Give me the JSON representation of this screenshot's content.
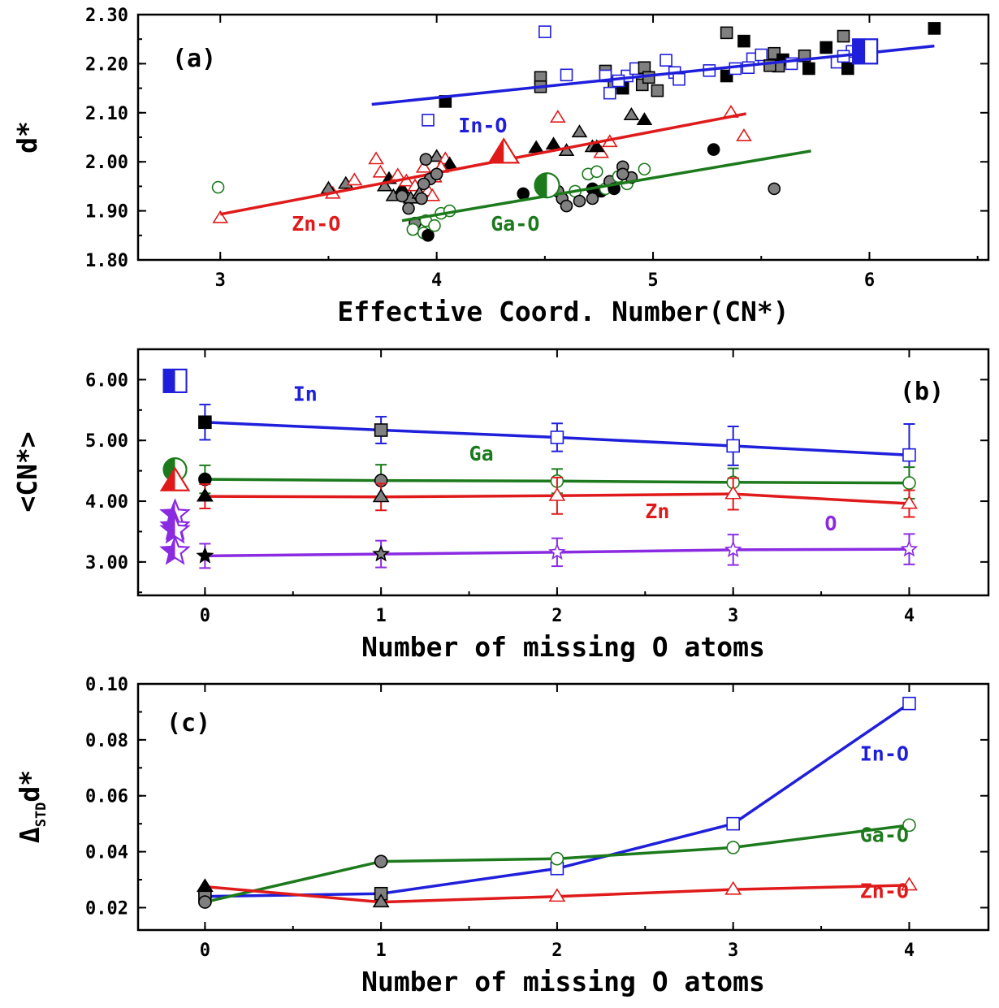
{
  "chart_data": [
    {
      "id": "a",
      "type": "scatter",
      "panel_label": "(a)",
      "xlabel": "Effective Coord. Number(CN*)",
      "ylabel": "d*",
      "xlim": [
        2.62,
        6.55
      ],
      "ylim": [
        1.8,
        2.3
      ],
      "xticks": [
        3,
        4,
        5,
        6
      ],
      "xtick_labels": [
        "3",
        "4",
        "5",
        "6"
      ],
      "yticks": [
        1.8,
        1.9,
        2.0,
        2.1,
        2.2,
        2.3
      ],
      "ytick_labels": [
        "1.80",
        "1.90",
        "2.00",
        "2.10",
        "2.20",
        "2.30"
      ],
      "annotations": [
        {
          "text": "In-O",
          "x": 4.1,
          "y": 2.06,
          "color": "#1f1fdb"
        },
        {
          "text": "Zn-O",
          "x": 3.33,
          "y": 1.86,
          "color": "#e01a1a"
        },
        {
          "text": "Ga-O",
          "x": 4.25,
          "y": 1.86,
          "color": "#1c7a1c"
        }
      ],
      "series": [
        {
          "name": "In-O",
          "color": "#1f1fdb",
          "marker": "square",
          "fit": {
            "x": [
              3.7,
              6.3
            ],
            "y": [
              2.117,
              2.236
            ]
          },
          "points": [
            [
              4.04,
              2.123,
              "black"
            ],
            [
              4.48,
              2.172,
              "gray"
            ],
            [
              4.48,
              2.153,
              "gray"
            ],
            [
              4.6,
              2.177,
              "open"
            ],
            [
              4.5,
              2.265,
              "open"
            ],
            [
              3.96,
              2.085,
              "open"
            ],
            [
              4.78,
              2.185,
              "gray"
            ],
            [
              4.82,
              2.16,
              "gray"
            ],
            [
              4.86,
              2.15,
              "black"
            ],
            [
              4.88,
              2.175,
              "open"
            ],
            [
              4.92,
              2.19,
              "open"
            ],
            [
              4.96,
              2.192,
              "gray"
            ],
            [
              4.95,
              2.157,
              "gray"
            ],
            [
              4.8,
              2.14,
              "open"
            ],
            [
              4.84,
              2.165,
              "open"
            ],
            [
              4.78,
              2.175,
              "open"
            ],
            [
              5.06,
              2.207,
              "open"
            ],
            [
              5.1,
              2.182,
              "open"
            ],
            [
              5.12,
              2.168,
              "open"
            ],
            [
              4.98,
              2.172,
              "gray"
            ],
            [
              5.02,
              2.145,
              "gray"
            ],
            [
              5.34,
              2.263,
              "gray"
            ],
            [
              5.42,
              2.246,
              "black"
            ],
            [
              5.34,
              2.175,
              "black"
            ],
            [
              5.38,
              2.19,
              "open"
            ],
            [
              5.46,
              2.21,
              "open"
            ],
            [
              5.5,
              2.218,
              "open"
            ],
            [
              5.56,
              2.221,
              "gray"
            ],
            [
              5.6,
              2.208,
              "black"
            ],
            [
              5.58,
              2.195,
              "gray"
            ],
            [
              5.64,
              2.2,
              "open"
            ],
            [
              5.7,
              2.216,
              "gray"
            ],
            [
              5.72,
              2.19,
              "black"
            ],
            [
              5.8,
              2.233,
              "black"
            ],
            [
              5.85,
              2.203,
              "open"
            ],
            [
              5.88,
              2.256,
              "gray"
            ],
            [
              5.9,
              2.19,
              "black"
            ],
            [
              5.92,
              2.225,
              "open"
            ],
            [
              5.88,
              2.215,
              "open"
            ],
            [
              6.3,
              2.272,
              "black"
            ],
            [
              5.54,
              2.196,
              "gray"
            ],
            [
              5.44,
              2.192,
              "open"
            ],
            [
              5.26,
              2.186,
              "open"
            ]
          ],
          "big_marker": {
            "x": 5.98,
            "y": 2.225,
            "style": "half"
          }
        },
        {
          "name": "Zn-O",
          "color": "#e01a1a",
          "marker": "triangle",
          "fit": {
            "x": [
              3.0,
              5.43
            ],
            "y": [
              1.893,
              2.098
            ]
          },
          "points": [
            [
              3.0,
              1.885,
              "open"
            ],
            [
              3.52,
              1.935,
              "open"
            ],
            [
              3.5,
              1.945,
              "gray"
            ],
            [
              3.58,
              1.955,
              "gray"
            ],
            [
              3.62,
              1.962,
              "open"
            ],
            [
              3.72,
              2.005,
              "open"
            ],
            [
              3.74,
              1.978,
              "open"
            ],
            [
              3.76,
              1.95,
              "gray"
            ],
            [
              3.78,
              1.965,
              "black"
            ],
            [
              3.8,
              1.93,
              "gray"
            ],
            [
              3.82,
              1.972,
              "open"
            ],
            [
              3.84,
              1.945,
              "black"
            ],
            [
              3.86,
              1.96,
              "open"
            ],
            [
              3.88,
              1.925,
              "gray"
            ],
            [
              3.9,
              1.95,
              "open"
            ],
            [
              3.92,
              1.935,
              "gray"
            ],
            [
              3.94,
              1.988,
              "open"
            ],
            [
              3.96,
              1.94,
              "open"
            ],
            [
              3.98,
              1.93,
              "open"
            ],
            [
              4.0,
              2.01,
              "gray"
            ],
            [
              4.04,
              2.005,
              "open"
            ],
            [
              4.06,
              1.995,
              "black"
            ],
            [
              4.02,
              1.988,
              "open"
            ],
            [
              3.99,
              1.968,
              "open"
            ],
            [
              4.56,
              2.09,
              "open"
            ],
            [
              4.66,
              2.06,
              "gray"
            ],
            [
              4.6,
              2.022,
              "gray"
            ],
            [
              4.54,
              2.035,
              "black"
            ],
            [
              4.46,
              2.028,
              "black"
            ],
            [
              4.72,
              2.03,
              "gray"
            ],
            [
              4.76,
              2.018,
              "open"
            ],
            [
              4.8,
              2.04,
              "open"
            ],
            [
              4.74,
              2.03,
              "black"
            ],
            [
              4.9,
              2.095,
              "gray"
            ],
            [
              4.96,
              2.085,
              "black"
            ],
            [
              5.36,
              2.1,
              "open"
            ],
            [
              5.42,
              2.052,
              "open"
            ]
          ],
          "big_marker": {
            "x": 4.31,
            "y": 2.017,
            "style": "half"
          }
        },
        {
          "name": "Ga-O",
          "color": "#1c7a1c",
          "marker": "circle",
          "fit": {
            "x": [
              3.84,
              5.73
            ],
            "y": [
              1.88,
              2.022
            ]
          },
          "points": [
            [
              2.99,
              1.948,
              "open"
            ],
            [
              3.84,
              1.93,
              "gray"
            ],
            [
              3.87,
              1.905,
              "gray"
            ],
            [
              3.9,
              1.875,
              "gray"
            ],
            [
              3.89,
              1.862,
              "open"
            ],
            [
              3.94,
              1.855,
              "open"
            ],
            [
              3.95,
              1.88,
              "open"
            ],
            [
              3.96,
              1.85,
              "black"
            ],
            [
              3.99,
              1.87,
              "open"
            ],
            [
              4.02,
              1.895,
              "open"
            ],
            [
              3.93,
              1.925,
              "gray"
            ],
            [
              3.95,
              2.005,
              "gray"
            ],
            [
              3.97,
              1.965,
              "gray"
            ],
            [
              4.0,
              1.975,
              "gray"
            ],
            [
              3.94,
              1.955,
              "gray"
            ],
            [
              4.06,
              1.9,
              "open"
            ],
            [
              4.4,
              1.935,
              "black"
            ],
            [
              4.52,
              1.958,
              "gray"
            ],
            [
              4.56,
              1.94,
              "gray"
            ],
            [
              4.58,
              1.925,
              "gray"
            ],
            [
              4.6,
              1.91,
              "gray"
            ],
            [
              4.64,
              1.94,
              "open"
            ],
            [
              4.66,
              1.92,
              "gray"
            ],
            [
              4.7,
              1.975,
              "open"
            ],
            [
              4.72,
              1.945,
              "black"
            ],
            [
              4.74,
              1.98,
              "open"
            ],
            [
              4.76,
              1.94,
              "black"
            ],
            [
              4.78,
              1.945,
              "open"
            ],
            [
              4.8,
              1.96,
              "gray"
            ],
            [
              4.82,
              1.945,
              "black"
            ],
            [
              4.84,
              1.97,
              "open"
            ],
            [
              4.86,
              1.99,
              "gray"
            ],
            [
              4.88,
              1.955,
              "open"
            ],
            [
              4.9,
              1.968,
              "gray"
            ],
            [
              4.96,
              1.985,
              "open"
            ],
            [
              5.28,
              2.025,
              "black"
            ],
            [
              5.56,
              1.945,
              "gray"
            ],
            [
              4.72,
              1.925,
              "gray"
            ],
            [
              4.86,
              1.975,
              "gray"
            ]
          ],
          "big_marker": {
            "x": 4.51,
            "y": 1.952,
            "style": "half"
          }
        }
      ]
    },
    {
      "id": "b",
      "type": "line",
      "panel_label": "(b)",
      "xlabel": "Number of missing O atoms",
      "ylabel": "<CN*>",
      "xlim": [
        -0.38,
        4.45
      ],
      "ylim": [
        2.45,
        6.5
      ],
      "xticks": [
        0,
        1,
        2,
        3,
        4
      ],
      "xtick_labels": [
        "0",
        "1",
        "2",
        "3",
        "4"
      ],
      "yticks": [
        3,
        4,
        5,
        6
      ],
      "ytick_labels": [
        "3.00",
        "4.00",
        "5.00",
        "6.00"
      ],
      "x": [
        0,
        1,
        2,
        3,
        4
      ],
      "annotations": [
        {
          "text": "In",
          "x": 0.5,
          "y": 5.65,
          "color": "#1f1fdb"
        },
        {
          "text": "Ga",
          "x": 1.5,
          "y": 4.67,
          "color": "#1c7a1c"
        },
        {
          "text": "Zn",
          "x": 2.5,
          "y": 3.72,
          "color": "#e01a1a"
        },
        {
          "text": "O",
          "x": 3.52,
          "y": 3.52,
          "color": "#8a2be2"
        }
      ],
      "series": [
        {
          "name": "In",
          "color": "#1f1fdb",
          "marker": "square",
          "values": [
            5.3,
            5.17,
            5.05,
            4.91,
            4.76
          ],
          "err": [
            0.29,
            0.22,
            0.23,
            0.32,
            0.51
          ],
          "fills": [
            "black",
            "gray",
            "open",
            "open",
            "open"
          ],
          "ref": [
            {
              "x": -0.17,
              "y": 5.98,
              "style": "half"
            }
          ]
        },
        {
          "name": "Ga",
          "color": "#1c7a1c",
          "marker": "circle",
          "values": [
            4.36,
            4.34,
            4.33,
            4.31,
            4.3
          ],
          "err": [
            0.23,
            0.26,
            0.2,
            0.23,
            0.26
          ],
          "fills": [
            "black",
            "gray",
            "open",
            "open",
            "open"
          ],
          "ref": [
            {
              "x": -0.17,
              "y": 4.52,
              "style": "half"
            }
          ]
        },
        {
          "name": "Zn",
          "color": "#e01a1a",
          "marker": "triangle",
          "values": [
            4.08,
            4.07,
            4.09,
            4.12,
            3.96
          ],
          "err": [
            0.2,
            0.22,
            0.3,
            0.26,
            0.22
          ],
          "fills": [
            "black",
            "gray",
            "open",
            "open",
            "open"
          ],
          "ref": [
            {
              "x": -0.17,
              "y": 4.32,
              "style": "half"
            }
          ]
        },
        {
          "name": "O",
          "color": "#8a2be2",
          "marker": "star",
          "values": [
            3.1,
            3.13,
            3.16,
            3.2,
            3.21
          ],
          "err": [
            0.2,
            0.22,
            0.23,
            0.25,
            0.25
          ],
          "fills": [
            "black",
            "gray",
            "open",
            "open",
            "open"
          ],
          "ref": [
            {
              "x": -0.17,
              "y": 3.78,
              "style": "half"
            },
            {
              "x": -0.17,
              "y": 3.58,
              "style": "half"
            },
            {
              "x": -0.17,
              "y": 3.52,
              "style": "half"
            },
            {
              "x": -0.17,
              "y": 3.17,
              "style": "half"
            }
          ]
        }
      ]
    },
    {
      "id": "c",
      "type": "line",
      "panel_label": "(c)",
      "xlabel": "Number of missing O atoms",
      "ylabel": "Δ",
      "ylabel_sub": "STD",
      "ylabel_tail": "d*",
      "xlim": [
        -0.38,
        4.45
      ],
      "ylim": [
        0.012,
        0.1
      ],
      "xticks": [
        0,
        1,
        2,
        3,
        4
      ],
      "xtick_labels": [
        "0",
        "1",
        "2",
        "3",
        "4"
      ],
      "yticks": [
        0.02,
        0.04,
        0.06,
        0.08,
        0.1
      ],
      "ytick_labels": [
        "0.02",
        "0.04",
        "0.06",
        "0.08",
        "0.10"
      ],
      "x": [
        0,
        1,
        2,
        3,
        4
      ],
      "annotations": [
        {
          "text": "In-O",
          "x": 3.72,
          "y": 0.0725,
          "color": "#1f1fdb"
        },
        {
          "text": "Ga-O",
          "x": 3.72,
          "y": 0.0435,
          "color": "#1c7a1c"
        },
        {
          "text": "Zn-O",
          "x": 3.72,
          "y": 0.0235,
          "color": "#e01a1a"
        }
      ],
      "series": [
        {
          "name": "In-O",
          "color": "#1f1fdb",
          "marker": "square",
          "values": [
            0.024,
            0.025,
            0.034,
            0.05,
            0.093
          ],
          "fills": [
            "gray",
            "gray",
            "open",
            "open",
            "open"
          ]
        },
        {
          "name": "Ga-O",
          "color": "#1c7a1c",
          "marker": "circle",
          "values": [
            0.022,
            0.0365,
            0.0375,
            0.0415,
            0.0495
          ],
          "fills": [
            "gray",
            "gray",
            "open",
            "open",
            "open"
          ]
        },
        {
          "name": "Zn-O",
          "color": "#e01a1a",
          "marker": "triangle",
          "values": [
            0.0275,
            0.022,
            0.024,
            0.0265,
            0.028
          ],
          "fills": [
            "black",
            "gray",
            "open",
            "open",
            "open"
          ]
        }
      ]
    }
  ]
}
